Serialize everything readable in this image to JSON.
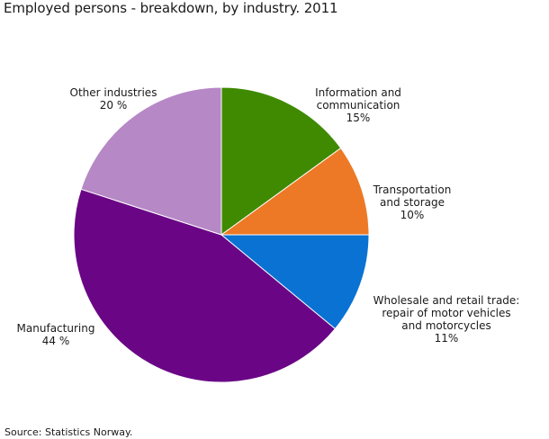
{
  "chart_data": {
    "type": "pie",
    "title": "Employed persons - breakdown, by industry. 2011",
    "slices": [
      {
        "name": "Information and communication",
        "label_lines": [
          "Information and",
          "communication",
          "15%"
        ],
        "value": 15,
        "color": "#3f8a00"
      },
      {
        "name": "Transportation and storage",
        "label_lines": [
          "Transportation",
          "and storage",
          "10%"
        ],
        "value": 10,
        "color": "#ed7926"
      },
      {
        "name": "Wholesale and retail trade: repair of motor vehicles and motorcycles",
        "label_lines": [
          "Wholesale and retail trade:",
          "repair of motor vehicles",
          "and motorcycles",
          "11%"
        ],
        "value": 11,
        "color": "#0a72d3"
      },
      {
        "name": "Manufacturing",
        "label_lines": [
          "Manufacturing",
          "44 %"
        ],
        "value": 44,
        "color": "#6a0686"
      },
      {
        "name": "Other industries",
        "label_lines": [
          "Other industries",
          "20 %"
        ],
        "value": 20,
        "color": "#b688c6"
      }
    ]
  },
  "source": "Source: Statistics Norway."
}
